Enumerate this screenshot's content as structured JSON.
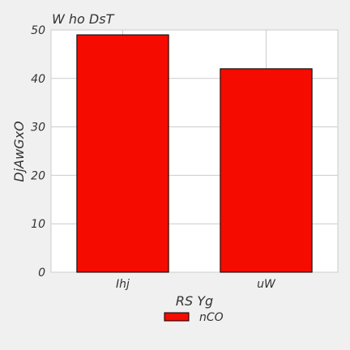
{
  "chart_data": {
    "type": "bar",
    "title": "W ho DsT",
    "xlabel": "RS Yg",
    "ylabel": "DjAwGxO",
    "categories": [
      "Ihj",
      "uW"
    ],
    "series": [
      {
        "name": "nCO",
        "values": [
          49,
          42
        ]
      }
    ],
    "ylim": [
      0,
      50
    ],
    "yticks": [
      0,
      10,
      20,
      30,
      40,
      50
    ],
    "grid": true,
    "legend_position": "bottom-center",
    "colors": {
      "bar": "#f50b00",
      "bar_edge": "#000000",
      "background": "#f0f0f0",
      "plot_background": "#ffffff",
      "grid": "#cccccc",
      "text": "#333333"
    }
  }
}
